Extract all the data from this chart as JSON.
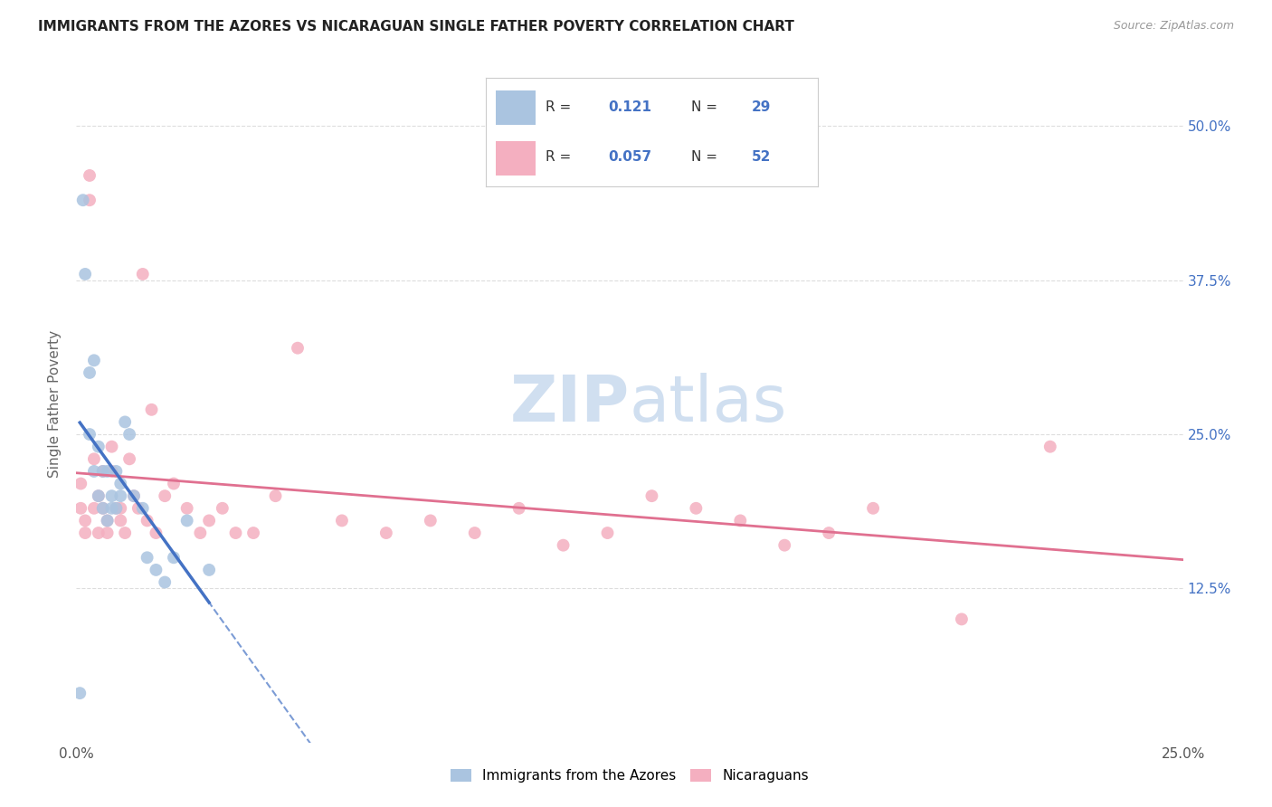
{
  "title": "IMMIGRANTS FROM THE AZORES VS NICARAGUAN SINGLE FATHER POVERTY CORRELATION CHART",
  "source": "Source: ZipAtlas.com",
  "ylabel": "Single Father Poverty",
  "legend_label1": "Immigrants from the Azores",
  "legend_label2": "Nicaraguans",
  "R1": 0.121,
  "N1": 29,
  "R2": 0.057,
  "N2": 52,
  "color1": "#aac4e0",
  "color2": "#f4afc0",
  "trendline1_color": "#4472c4",
  "trendline2_color": "#e07090",
  "watermark_color": "#d0dff0",
  "azores_x": [
    0.0008,
    0.0015,
    0.002,
    0.003,
    0.003,
    0.004,
    0.004,
    0.005,
    0.005,
    0.006,
    0.006,
    0.007,
    0.007,
    0.008,
    0.008,
    0.009,
    0.009,
    0.01,
    0.01,
    0.011,
    0.012,
    0.013,
    0.015,
    0.016,
    0.018,
    0.02,
    0.022,
    0.025,
    0.03
  ],
  "azores_y": [
    0.04,
    0.44,
    0.38,
    0.3,
    0.25,
    0.22,
    0.31,
    0.2,
    0.24,
    0.22,
    0.19,
    0.22,
    0.18,
    0.19,
    0.2,
    0.19,
    0.22,
    0.21,
    0.2,
    0.26,
    0.25,
    0.2,
    0.19,
    0.15,
    0.14,
    0.13,
    0.15,
    0.18,
    0.14
  ],
  "nicaraguan_x": [
    0.001,
    0.001,
    0.002,
    0.002,
    0.003,
    0.003,
    0.004,
    0.004,
    0.005,
    0.005,
    0.006,
    0.006,
    0.007,
    0.007,
    0.008,
    0.008,
    0.009,
    0.01,
    0.01,
    0.011,
    0.012,
    0.013,
    0.014,
    0.015,
    0.016,
    0.017,
    0.018,
    0.02,
    0.022,
    0.025,
    0.028,
    0.03,
    0.033,
    0.036,
    0.04,
    0.045,
    0.05,
    0.06,
    0.07,
    0.08,
    0.09,
    0.1,
    0.11,
    0.12,
    0.13,
    0.14,
    0.15,
    0.16,
    0.17,
    0.18,
    0.2,
    0.22
  ],
  "nicaraguan_y": [
    0.19,
    0.21,
    0.18,
    0.17,
    0.44,
    0.46,
    0.19,
    0.23,
    0.17,
    0.2,
    0.19,
    0.22,
    0.17,
    0.18,
    0.24,
    0.22,
    0.19,
    0.18,
    0.19,
    0.17,
    0.23,
    0.2,
    0.19,
    0.38,
    0.18,
    0.27,
    0.17,
    0.2,
    0.21,
    0.19,
    0.17,
    0.18,
    0.19,
    0.17,
    0.17,
    0.2,
    0.32,
    0.18,
    0.17,
    0.18,
    0.17,
    0.19,
    0.16,
    0.17,
    0.2,
    0.19,
    0.18,
    0.16,
    0.17,
    0.19,
    0.1,
    0.24
  ],
  "xlim": [
    0.0,
    0.25
  ],
  "ylim": [
    0.0,
    0.55
  ],
  "ytick_vals": [
    0.125,
    0.25,
    0.375,
    0.5
  ],
  "ytick_labels": [
    "12.5%",
    "25.0%",
    "37.5%",
    "50.0%"
  ]
}
